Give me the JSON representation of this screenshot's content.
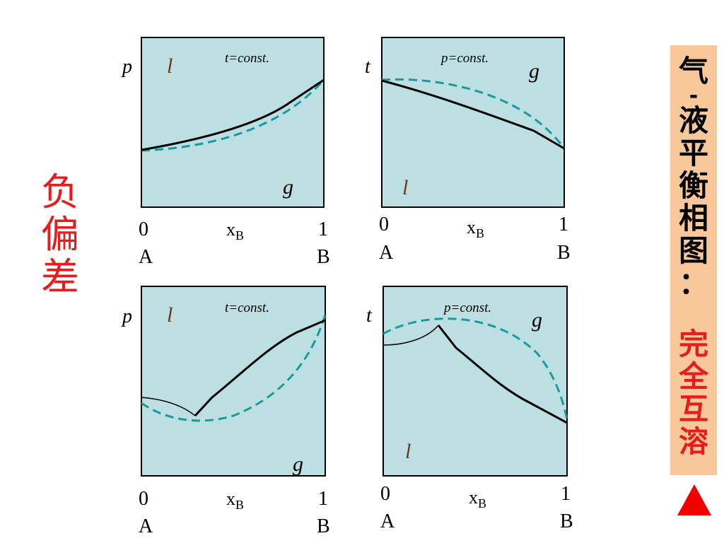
{
  "left_label": [
    "负",
    "偏",
    "差"
  ],
  "right_panel": {
    "black_chars": [
      "气",
      "-",
      "液",
      "平",
      "衡",
      "相",
      "图",
      "："
    ],
    "red_chars": [
      "完",
      "全",
      "互",
      "溶"
    ],
    "bg_color": "#f8c89a",
    "text_color": "#000000",
    "highlight_color": "#e81c1c"
  },
  "triangle_icon": "red-triangle-icon",
  "diagrams": [
    {
      "y_axis": "p",
      "condition": "t=const.",
      "top_phase": "l",
      "bottom_phase": "g",
      "x_start": "0",
      "x_end": "1",
      "x_var": "x",
      "x_sub": "B",
      "left_comp": "A",
      "right_comp": "B"
    },
    {
      "y_axis": "t",
      "condition": "p=const.",
      "top_phase": "g",
      "bottom_phase": "l",
      "x_start": "0",
      "x_end": "1",
      "x_var": "x",
      "x_sub": "B",
      "left_comp": "A",
      "right_comp": "B"
    },
    {
      "y_axis": "p",
      "condition": "t=const.",
      "top_phase": "l",
      "bottom_phase": "g",
      "x_start": "0",
      "x_end": "1",
      "x_var": "x",
      "x_sub": "B",
      "left_comp": "A",
      "right_comp": "B"
    },
    {
      "y_axis": "t",
      "condition": "p=const.",
      "top_phase": "g",
      "bottom_phase": "l",
      "x_start": "0",
      "x_end": "1",
      "x_var": "x",
      "x_sub": "B",
      "left_comp": "A",
      "right_comp": "B"
    }
  ],
  "colors": {
    "plot_bg": "#bce0e2",
    "liquid_curve": "#000000",
    "vapor_curve": "#1a9aa0",
    "phase_label": "#6b3a1a"
  }
}
